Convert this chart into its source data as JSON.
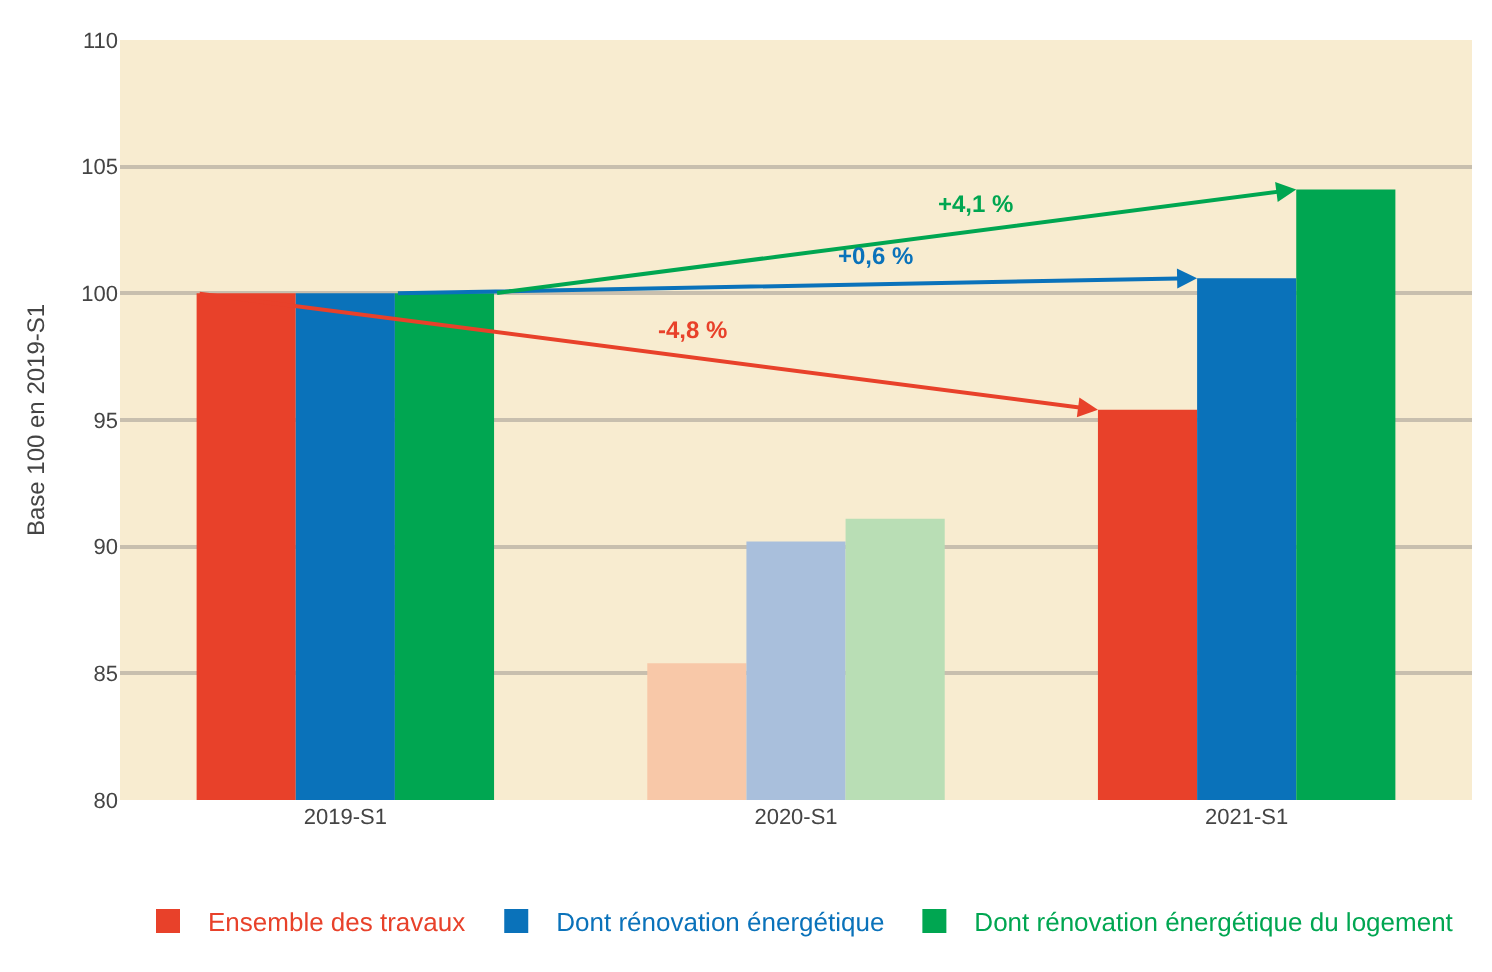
{
  "chart_data": {
    "type": "bar",
    "ylabel": "Base 100 en 2019-S1",
    "categories": [
      "2019-S1",
      "2020-S1",
      "2021-S1"
    ],
    "series": [
      {
        "name": "Ensemble des travaux",
        "color": "#e8412a",
        "colors": [
          "#e8412a",
          "#f8c8a8",
          "#e8412a"
        ],
        "values": [
          100,
          85.4,
          95.4
        ]
      },
      {
        "name": "Dont rénovation énergétique",
        "color": "#0a72ba",
        "colors": [
          "#0a72ba",
          "#a9bfdc",
          "#0a72ba"
        ],
        "values": [
          100,
          90.2,
          100.6
        ]
      },
      {
        "name": "Dont rénovation énergétique du logement",
        "color": "#00a651",
        "colors": [
          "#00a651",
          "#b9deb5",
          "#00a651"
        ],
        "values": [
          100,
          91.1,
          104.1
        ]
      }
    ],
    "annotations": [
      "+4,1 %",
      "+0,6 %",
      "-4,8 %"
    ],
    "ylim": [
      80,
      110
    ],
    "yticks": [
      80,
      85,
      90,
      95,
      100,
      105,
      110
    ],
    "grid": "y",
    "legend": "bottom"
  }
}
